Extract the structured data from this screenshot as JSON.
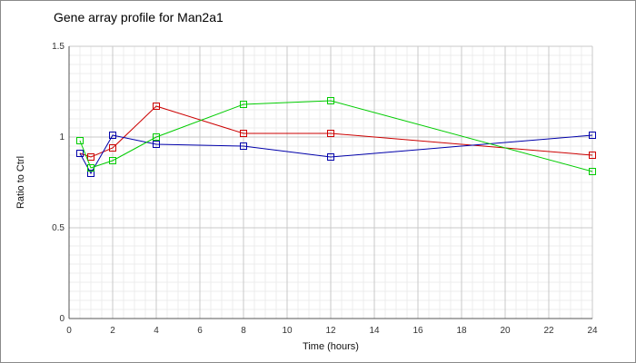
{
  "chart_data": {
    "type": "line",
    "title": "Gene array profile for Man2a1",
    "xlabel": "Time (hours)",
    "ylabel": "Ratio to Ctrl",
    "xlim": [
      0,
      24
    ],
    "ylim": [
      0,
      1.5
    ],
    "x_ticks": [
      "0",
      "2",
      "4",
      "6",
      "8",
      "10",
      "12",
      "14",
      "16",
      "18",
      "20",
      "22",
      "24"
    ],
    "y_ticks": [
      "0",
      "0.5",
      "1",
      "1.5"
    ],
    "grid": true,
    "x": [
      0.5,
      1,
      2,
      4,
      8,
      12,
      24
    ],
    "series": [
      {
        "color": "#cc0000",
        "values": [
          0.91,
          0.89,
          0.94,
          1.17,
          1.02,
          1.02,
          0.9
        ]
      },
      {
        "color": "#0000aa",
        "values": [
          0.91,
          0.8,
          1.01,
          0.96,
          0.95,
          0.89,
          1.01
        ]
      },
      {
        "color": "#00cc00",
        "values": [
          0.98,
          0.83,
          0.87,
          1.0,
          1.18,
          1.2,
          0.81
        ]
      }
    ]
  }
}
